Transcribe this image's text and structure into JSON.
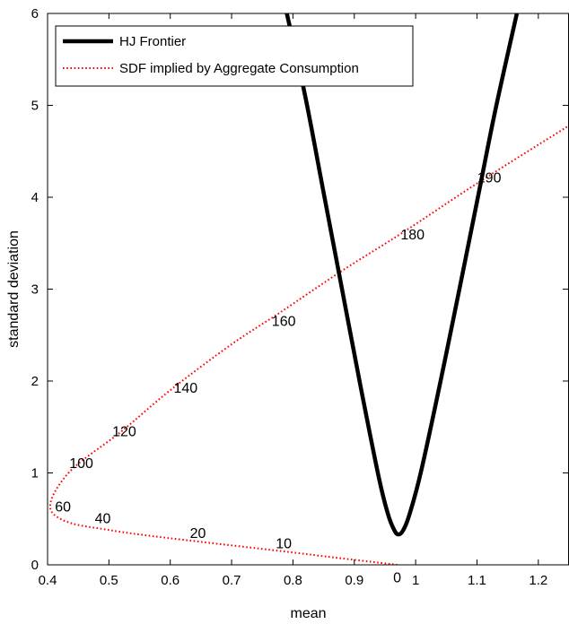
{
  "chart_data": {
    "type": "line",
    "title": "",
    "xlabel": "mean",
    "ylabel": "standard deviation",
    "xlim": [
      0.4,
      1.25
    ],
    "ylim": [
      0,
      6
    ],
    "xticks": [
      "0.4",
      "0.5",
      "0.6",
      "0.7",
      "0.8",
      "0.9",
      "1",
      "1.1",
      "1.2"
    ],
    "yticks": [
      "0",
      "1",
      "2",
      "3",
      "4",
      "5",
      "6"
    ],
    "grid": false,
    "legend_position": "top-left",
    "colors": {
      "hj": "#000000",
      "sdf": "#ff0000"
    },
    "series": [
      {
        "name": "HJ Frontier",
        "style": "solid-thick",
        "points": [
          [
            0.79,
            6.0
          ],
          [
            0.82,
            5.1
          ],
          [
            0.85,
            4.05
          ],
          [
            0.88,
            3.0
          ],
          [
            0.91,
            1.95
          ],
          [
            0.94,
            0.95
          ],
          [
            0.955,
            0.55
          ],
          [
            0.965,
            0.38
          ],
          [
            0.972,
            0.33
          ],
          [
            0.98,
            0.38
          ],
          [
            0.99,
            0.55
          ],
          [
            1.01,
            1.05
          ],
          [
            1.05,
            2.3
          ],
          [
            1.1,
            3.95
          ],
          [
            1.13,
            4.95
          ],
          [
            1.165,
            6.0
          ]
        ]
      },
      {
        "name": "SDF implied by Aggregate Consumption",
        "style": "dotted",
        "points": [
          [
            0.97,
            0.0
          ],
          [
            0.88,
            0.07
          ],
          [
            0.78,
            0.15
          ],
          [
            0.65,
            0.25
          ],
          [
            0.55,
            0.33
          ],
          [
            0.49,
            0.39
          ],
          [
            0.44,
            0.45
          ],
          [
            0.41,
            0.55
          ],
          [
            0.405,
            0.68
          ],
          [
            0.42,
            0.88
          ],
          [
            0.45,
            1.1
          ],
          [
            0.52,
            1.45
          ],
          [
            0.6,
            1.9
          ],
          [
            0.7,
            2.4
          ],
          [
            0.78,
            2.75
          ],
          [
            0.88,
            3.2
          ],
          [
            0.98,
            3.62
          ],
          [
            1.1,
            4.15
          ],
          [
            1.25,
            4.78
          ]
        ]
      }
    ],
    "annotations": [
      {
        "text": "0",
        "x": 0.97,
        "y": -0.13
      },
      {
        "text": "10",
        "x": 0.785,
        "y": 0.24
      },
      {
        "text": "20",
        "x": 0.645,
        "y": 0.35
      },
      {
        "text": "40",
        "x": 0.49,
        "y": 0.51
      },
      {
        "text": "60",
        "x": 0.425,
        "y": 0.64
      },
      {
        "text": "100",
        "x": 0.455,
        "y": 1.11
      },
      {
        "text": "120",
        "x": 0.525,
        "y": 1.46
      },
      {
        "text": "140",
        "x": 0.625,
        "y": 1.93
      },
      {
        "text": "160",
        "x": 0.785,
        "y": 2.66
      },
      {
        "text": "180",
        "x": 0.995,
        "y": 3.6
      },
      {
        "text": "190",
        "x": 1.12,
        "y": 4.22
      }
    ]
  }
}
